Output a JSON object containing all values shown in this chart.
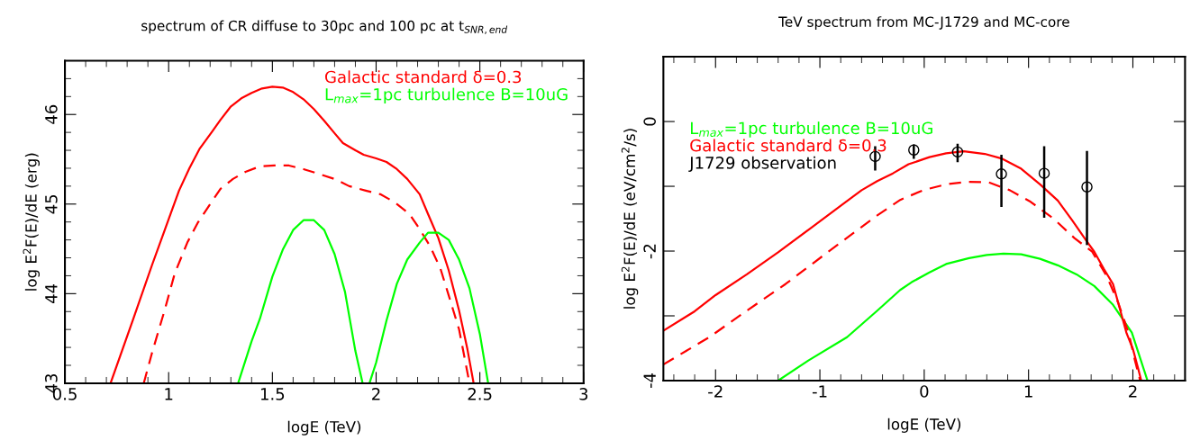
{
  "chart_data": [
    {
      "type": "line",
      "title": "spectrum of CR diffuse to 30pc and 100 pc at t$_{SNR,end}$",
      "xlabel": "logE (TeV)",
      "ylabel": "log E$^{2}$F(E)/dE (erg)",
      "xlim": [
        0.5,
        3
      ],
      "ylim": [
        43,
        46.6
      ],
      "xticks": [
        0.5,
        1,
        1.5,
        2,
        2.5,
        3
      ],
      "yticks": [
        43,
        44,
        45,
        46
      ],
      "grid": false,
      "legend": "top right",
      "marker": "none",
      "series": [
        {
          "name": "Galactic standard δ=0.3",
          "color": "#ff0000",
          "line_style": "solid",
          "x": [
            0.72,
            0.83,
            0.92,
            1.0,
            1.05,
            1.1,
            1.15,
            1.21,
            1.25,
            1.3,
            1.35,
            1.4,
            1.45,
            1.5,
            1.55,
            1.6,
            1.65,
            1.7,
            1.75,
            1.8,
            1.84,
            1.9,
            1.94,
            2.0,
            2.05,
            2.1,
            2.15,
            2.21,
            2.25,
            2.3,
            2.35,
            2.4,
            2.44,
            2.47
          ],
          "values": [
            43.0,
            43.72,
            44.32,
            44.83,
            45.15,
            45.4,
            45.62,
            45.81,
            45.94,
            46.09,
            46.18,
            46.24,
            46.29,
            46.31,
            46.3,
            46.25,
            46.17,
            46.06,
            45.93,
            45.79,
            45.68,
            45.6,
            45.55,
            45.51,
            45.47,
            45.39,
            45.28,
            45.11,
            44.89,
            44.62,
            44.26,
            43.81,
            43.38,
            43.0
          ]
        },
        {
          "color": "#ff0000",
          "line_style": "dashed",
          "x": [
            0.88,
            0.92,
            0.98,
            1.03,
            1.09,
            1.14,
            1.2,
            1.25,
            1.31,
            1.37,
            1.44,
            1.51,
            1.58,
            1.65,
            1.72,
            1.8,
            1.87,
            1.95,
            2.02,
            2.09,
            2.16,
            2.21,
            2.26,
            2.31,
            2.35,
            2.4,
            2.45
          ],
          "values": [
            43.0,
            43.34,
            43.81,
            44.23,
            44.57,
            44.79,
            45.0,
            45.17,
            45.28,
            45.36,
            45.42,
            45.43,
            45.43,
            45.39,
            45.34,
            45.28,
            45.2,
            45.15,
            45.11,
            45.02,
            44.89,
            44.72,
            44.53,
            44.28,
            43.98,
            43.6,
            43.0
          ]
        },
        {
          "name": "L$_{max}$=1pc turbulence B=10uG",
          "color": "#00ff00",
          "line_style": "solid",
          "x": [
            1.335,
            1.4,
            1.44,
            1.5,
            1.55,
            1.6,
            1.65,
            1.7,
            1.75,
            1.8,
            1.85,
            1.9,
            1.935,
            1.95,
            1.968,
            2.0,
            2.05,
            2.1,
            2.15,
            2.21,
            2.25,
            2.3,
            2.35,
            2.4,
            2.45,
            2.5,
            2.54
          ],
          "values": [
            43.0,
            43.47,
            43.72,
            44.19,
            44.49,
            44.71,
            44.82,
            44.82,
            44.71,
            44.44,
            44.02,
            43.36,
            43.0,
            null,
            43.0,
            43.23,
            43.7,
            44.11,
            44.38,
            44.57,
            44.68,
            44.68,
            44.6,
            44.38,
            44.06,
            43.55,
            43.0
          ]
        }
      ]
    },
    {
      "type": "line",
      "title": "TeV spectrum from MC-J1729 and MC-core",
      "xlabel": "logE (TeV)",
      "ylabel": "log E$^{2}$F(E)/dE (eV/cm$^{2}$/s)",
      "xlim": [
        -2.5,
        2.5
      ],
      "ylim": [
        -4,
        1
      ],
      "xticks": [
        -2,
        -1,
        0,
        1,
        2
      ],
      "yticks": [
        -4,
        {
          "value": -3,
          "label": null
        },
        -2,
        {
          "value": -1,
          "label": null
        },
        0
      ],
      "grid": false,
      "legend": "top left",
      "marker": "none",
      "series": [
        {
          "name": "L$_{max}$=1pc turbulence B=10uG",
          "color": "#00ff00",
          "line_style": "solid",
          "x": [
            -1.4,
            -1.11,
            -0.74,
            -0.45,
            -0.23,
            -0.12,
            0.05,
            0.21,
            0.43,
            0.6,
            0.76,
            0.93,
            1.11,
            1.28,
            1.46,
            1.63,
            1.81,
            1.99,
            2.14
          ],
          "values": [
            -4.0,
            -3.69,
            -3.33,
            -2.92,
            -2.6,
            -2.48,
            -2.33,
            -2.2,
            -2.11,
            -2.06,
            -2.04,
            -2.05,
            -2.12,
            -2.22,
            -2.36,
            -2.54,
            -2.83,
            -3.26,
            -4.0
          ]
        },
        {
          "name": "Galactic standard δ=0.3",
          "color": "#ff0000",
          "line_style": "solid",
          "x": [
            -2.5,
            -2.2,
            -2.0,
            -1.7,
            -1.4,
            -1.1,
            -0.8,
            -0.6,
            -0.45,
            -0.3,
            -0.15,
            0.05,
            0.21,
            0.38,
            0.58,
            0.74,
            0.93,
            1.11,
            1.28,
            1.42,
            1.55,
            1.63,
            1.72,
            1.81,
            1.88,
            1.94,
            2.0,
            2.05,
            2.08
          ],
          "values": [
            -3.23,
            -2.93,
            -2.68,
            -2.36,
            -2.02,
            -1.66,
            -1.3,
            -1.06,
            -0.92,
            -0.8,
            -0.66,
            -0.55,
            -0.49,
            -0.46,
            -0.5,
            -0.57,
            -0.73,
            -0.97,
            -1.22,
            -1.53,
            -1.83,
            -2.01,
            -2.27,
            -2.51,
            -2.92,
            -3.27,
            -3.51,
            -3.81,
            -4.0
          ]
        },
        {
          "color": "#ff0000",
          "line_style": "dashed",
          "x": [
            -2.5,
            -2.06,
            -1.7,
            -1.33,
            -0.96,
            -0.67,
            -0.45,
            -0.23,
            -0.01,
            0.21,
            0.41,
            0.62,
            0.82,
            1.02,
            1.24,
            1.44,
            1.61,
            1.75,
            1.86,
            1.96,
            2.02,
            2.07
          ],
          "values": [
            -3.75,
            -3.33,
            -2.92,
            -2.51,
            -2.06,
            -1.71,
            -1.45,
            -1.21,
            -1.06,
            -0.97,
            -0.93,
            -0.94,
            -1.06,
            -1.24,
            -1.5,
            -1.8,
            -2.01,
            -2.39,
            -2.8,
            -3.27,
            -3.69,
            -4.0
          ]
        },
        {
          "name": "J1729 observation",
          "type": "scatter",
          "marker": "circle",
          "color": "#000000",
          "x": [
            -0.47,
            -0.1,
            0.32,
            0.74,
            1.15,
            1.56
          ],
          "values": [
            -0.54,
            -0.44,
            -0.47,
            -0.81,
            -0.8,
            -1.01
          ],
          "errors": [
            [
              -0.74,
              -0.4
            ],
            [
              -0.56,
              -0.37
            ],
            [
              -0.61,
              -0.36
            ],
            [
              -1.3,
              -0.53
            ],
            [
              -1.47,
              -0.4
            ],
            [
              -1.89,
              -0.47
            ]
          ]
        }
      ]
    }
  ]
}
